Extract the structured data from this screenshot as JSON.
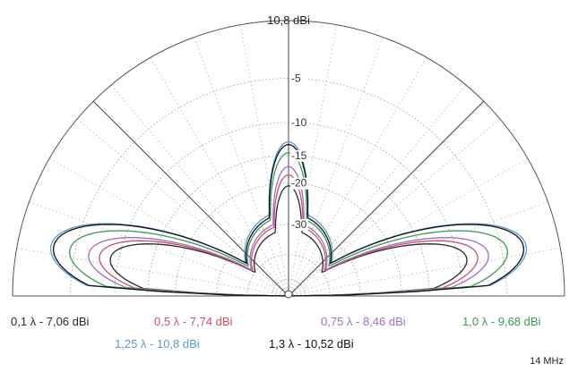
{
  "chart_data": {
    "type": "polar-elevation",
    "title": "",
    "peak_label": "10,8 dBi",
    "ring_labels": [
      "-5",
      "-10",
      "-15",
      "-20",
      "-30"
    ],
    "angle_range_deg": [
      0,
      180
    ],
    "grid": true,
    "legend_placement": "bottom",
    "frequency_label": "14 MHz",
    "series": [
      {
        "name": "0,1 λ - 7,06 dBi",
        "color": "#2a2a2a",
        "lobe_r": 0.66,
        "lobe_w": 19,
        "side_r": 0.4,
        "side_w": 16,
        "dip_r": 0.22
      },
      {
        "name": "0,5 λ - 7,74 dBi",
        "color": "#d0506a",
        "lobe_r": 0.7,
        "lobe_w": 19,
        "side_r": 0.44,
        "side_w": 16,
        "dip_r": 0.24
      },
      {
        "name": "0,75 λ - 8,46 dBi",
        "color": "#9c6fc0",
        "lobe_r": 0.74,
        "lobe_w": 19,
        "side_r": 0.47,
        "side_w": 16,
        "dip_r": 0.25
      },
      {
        "name": "1,0 λ - 9,68 dBi",
        "color": "#3a9a5a",
        "lobe_r": 0.81,
        "lobe_w": 20,
        "side_r": 0.52,
        "side_w": 17,
        "dip_r": 0.27
      },
      {
        "name": "1,25 λ - 10,8 dBi",
        "color": "#5a9ad0",
        "lobe_r": 0.88,
        "lobe_w": 21,
        "side_r": 0.56,
        "side_w": 17,
        "dip_r": 0.29
      },
      {
        "name": "1,3 λ - 10,52 dBi",
        "color": "#111111",
        "lobe_r": 0.87,
        "lobe_w": 21,
        "side_r": 0.55,
        "side_w": 17,
        "dip_r": 0.28
      }
    ]
  }
}
